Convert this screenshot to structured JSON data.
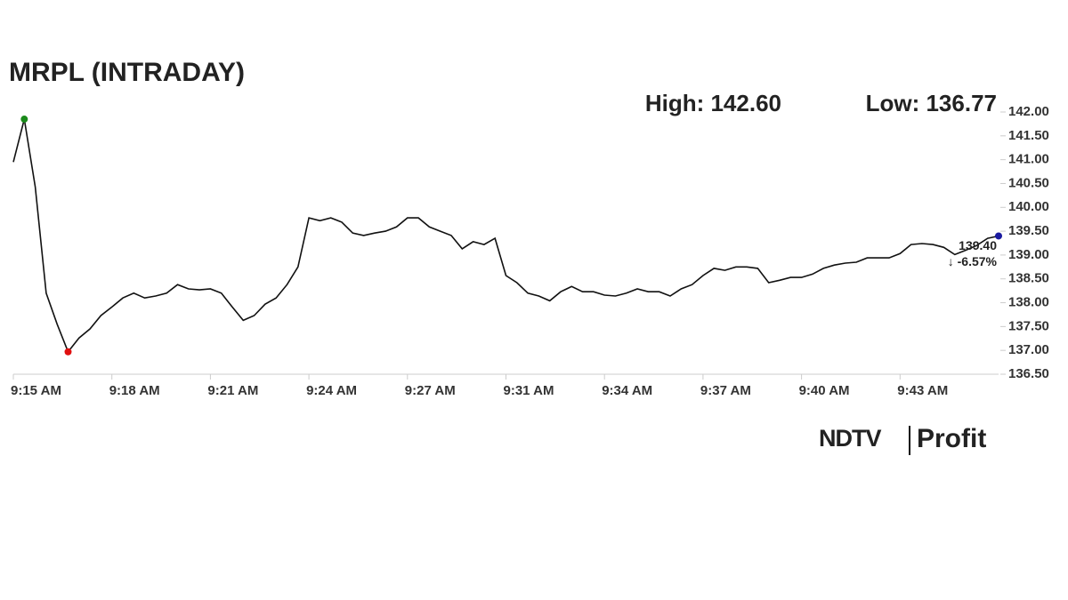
{
  "chart_data": {
    "type": "line",
    "title": "MRPL (INTRADAY)",
    "high_label": "High: 142.60",
    "low_label": "Low: 136.77",
    "last_label": "139.40",
    "change_label": "↓ -6.57%",
    "brand": "NDTV",
    "brand_product": "Profit",
    "color": "#111111",
    "high_color": "#1a8a1a",
    "low_color": "#e01010",
    "last_color": "#1a1aa0",
    "change_color": "#e01010",
    "categories": [
      "9:15 AM",
      null,
      null,
      null,
      null,
      null,
      null,
      null,
      null,
      "9:18 AM",
      null,
      null,
      null,
      null,
      null,
      null,
      null,
      null,
      "9:21 AM",
      null,
      null,
      null,
      null,
      null,
      null,
      null,
      null,
      "9:24 AM",
      null,
      null,
      null,
      null,
      null,
      null,
      null,
      null,
      "9:27 AM",
      null,
      null,
      null,
      null,
      null,
      null,
      null,
      null,
      "9:31 AM",
      null,
      null,
      null,
      null,
      null,
      null,
      null,
      null,
      "9:34 AM",
      null,
      null,
      null,
      null,
      null,
      null,
      null,
      null,
      "9:37 AM",
      null,
      null,
      null,
      null,
      null,
      null,
      null,
      null,
      "9:40 AM",
      null,
      null,
      null,
      null,
      null,
      null,
      null,
      null,
      "9:43 AM",
      null,
      null,
      null,
      null,
      null,
      null,
      null,
      null,
      null
    ],
    "values": [
      140.95,
      141.85,
      140.43,
      138.2,
      137.55,
      136.97,
      137.26,
      137.45,
      137.73,
      137.91,
      138.1,
      138.2,
      138.1,
      138.14,
      138.2,
      138.38,
      138.29,
      138.27,
      138.29,
      138.2,
      137.91,
      137.63,
      137.73,
      137.97,
      138.1,
      138.38,
      138.75,
      139.78,
      139.72,
      139.78,
      139.69,
      139.46,
      139.41,
      139.46,
      139.5,
      139.59,
      139.78,
      139.78,
      139.59,
      139.5,
      139.41,
      139.13,
      139.28,
      139.22,
      139.35,
      138.57,
      138.42,
      138.2,
      138.14,
      138.04,
      138.23,
      138.34,
      138.23,
      138.23,
      138.16,
      138.14,
      138.2,
      138.29,
      138.23,
      138.23,
      138.14,
      138.29,
      138.38,
      138.57,
      138.72,
      138.68,
      138.75,
      138.75,
      138.72,
      138.42,
      138.47,
      138.53,
      138.53,
      138.6,
      138.72,
      138.79,
      138.83,
      138.85,
      138.94,
      138.94,
      138.94,
      139.03,
      139.22,
      139.24,
      139.22,
      139.16,
      139.01,
      139.1,
      139.2,
      139.35,
      139.4
    ],
    "ylim": [
      136.5,
      142.0
    ],
    "yticks": [
      {
        "value": 136.5,
        "label": "136.50"
      },
      {
        "value": 137.0,
        "label": "137.00"
      },
      {
        "value": 137.5,
        "label": "137.50"
      },
      {
        "value": 138.0,
        "label": "138.00"
      },
      {
        "value": 138.5,
        "label": "138.50"
      },
      {
        "value": 139.0,
        "label": "139.00"
      },
      {
        "value": 139.5,
        "label": "139.50"
      },
      {
        "value": 140.0,
        "label": "140.00"
      },
      {
        "value": 140.5,
        "label": "140.50"
      },
      {
        "value": 141.0,
        "label": "141.00"
      },
      {
        "value": 141.5,
        "label": "141.50"
      },
      {
        "value": 142.0,
        "label": "142.00"
      }
    ],
    "grid": false
  }
}
